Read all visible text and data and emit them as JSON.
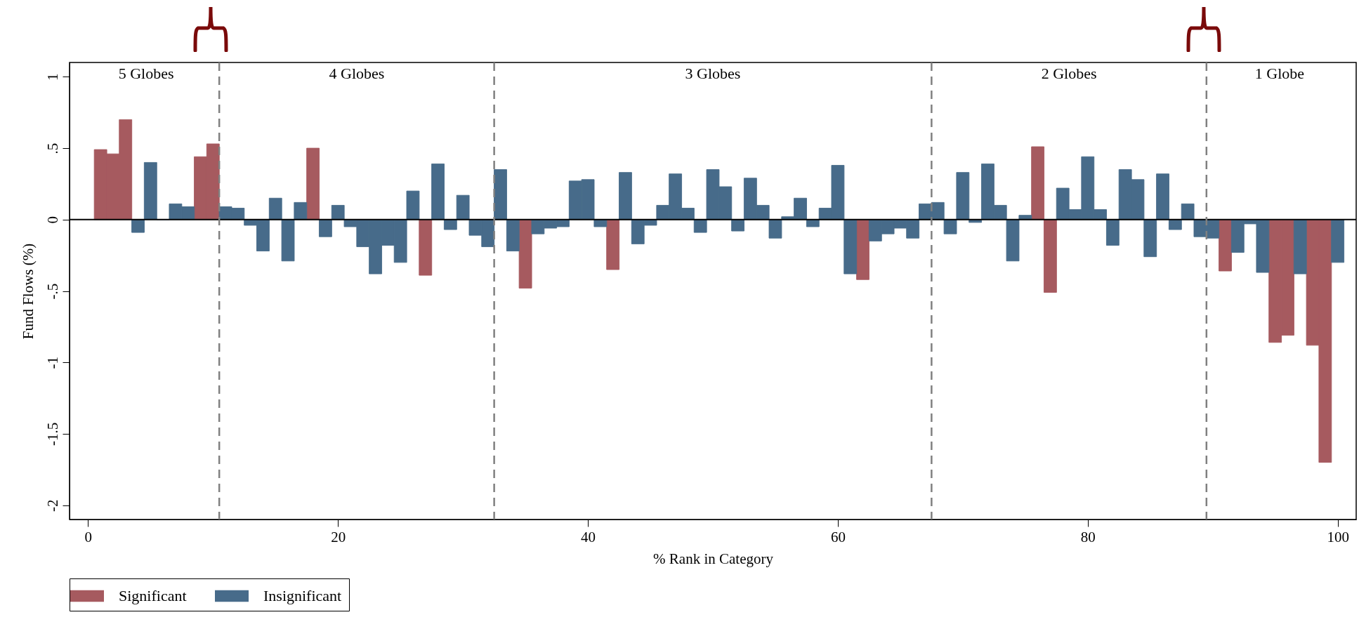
{
  "chart_data": {
    "type": "bar",
    "xlabel": "% Rank in Category",
    "ylabel": "Fund Flows (%)",
    "x": [
      1,
      2,
      3,
      4,
      5,
      6,
      7,
      8,
      9,
      10,
      11,
      12,
      13,
      14,
      15,
      16,
      17,
      18,
      19,
      20,
      21,
      22,
      23,
      24,
      25,
      26,
      27,
      28,
      29,
      30,
      31,
      32,
      33,
      34,
      35,
      36,
      37,
      38,
      39,
      40,
      41,
      42,
      43,
      44,
      45,
      46,
      47,
      48,
      49,
      50,
      51,
      52,
      53,
      54,
      55,
      56,
      57,
      58,
      59,
      60,
      61,
      62,
      63,
      64,
      65,
      66,
      67,
      68,
      69,
      70,
      71,
      72,
      73,
      74,
      75,
      76,
      77,
      78,
      79,
      80,
      81,
      82,
      83,
      84,
      85,
      86,
      87,
      88,
      89,
      90,
      91,
      92,
      93,
      94,
      95,
      96,
      97,
      98,
      99,
      100
    ],
    "series": [
      {
        "name": "Significant",
        "color": "#a65a5f",
        "values": [
          0.49,
          0.46,
          0.7,
          null,
          null,
          null,
          null,
          null,
          0.44,
          0.53,
          null,
          null,
          null,
          null,
          null,
          null,
          null,
          0.5,
          null,
          null,
          null,
          null,
          null,
          null,
          null,
          null,
          -0.39,
          null,
          null,
          null,
          null,
          null,
          null,
          null,
          -0.48,
          null,
          null,
          null,
          null,
          null,
          null,
          -0.35,
          null,
          null,
          null,
          null,
          null,
          null,
          null,
          null,
          null,
          null,
          null,
          null,
          null,
          null,
          null,
          null,
          null,
          null,
          null,
          -0.42,
          null,
          null,
          null,
          null,
          null,
          null,
          null,
          null,
          null,
          null,
          null,
          null,
          null,
          0.51,
          -0.51,
          null,
          null,
          null,
          null,
          null,
          null,
          null,
          null,
          null,
          null,
          null,
          null,
          null,
          -0.36,
          null,
          null,
          null,
          -0.86,
          -0.81,
          null,
          -0.88,
          -1.7,
          null
        ]
      },
      {
        "name": "Insignificant",
        "color": "#476b8a",
        "values": [
          null,
          null,
          null,
          -0.09,
          0.4,
          0.0,
          0.11,
          0.09,
          null,
          null,
          0.09,
          0.08,
          -0.04,
          -0.22,
          0.15,
          -0.29,
          0.12,
          null,
          -0.12,
          0.1,
          -0.05,
          -0.19,
          -0.38,
          -0.18,
          -0.3,
          0.2,
          null,
          0.39,
          -0.07,
          0.17,
          -0.11,
          -0.19,
          0.35,
          -0.22,
          null,
          -0.1,
          -0.06,
          -0.05,
          0.27,
          0.28,
          -0.05,
          null,
          0.33,
          -0.17,
          -0.04,
          0.1,
          0.32,
          0.08,
          -0.09,
          0.35,
          0.23,
          -0.08,
          0.29,
          0.1,
          -0.13,
          0.02,
          0.15,
          -0.05,
          0.08,
          0.38,
          -0.38,
          null,
          -0.15,
          -0.1,
          -0.06,
          -0.13,
          0.11,
          0.12,
          -0.1,
          0.33,
          -0.02,
          0.39,
          0.1,
          -0.29,
          0.03,
          null,
          null,
          0.22,
          0.07,
          0.44,
          0.07,
          -0.18,
          0.35,
          0.28,
          -0.26,
          0.32,
          -0.07,
          0.11,
          -0.12,
          -0.13,
          null,
          -0.23,
          -0.03,
          -0.37,
          null,
          null,
          -0.38,
          null,
          null,
          -0.3
        ]
      }
    ],
    "xlim": [
      -1.2,
      101.2
    ],
    "ylim": [
      -2.1,
      1.1
    ],
    "xticks": [
      0,
      20,
      40,
      60,
      80,
      100
    ],
    "yticks": [
      1,
      {
        "value": 0.5,
        "label": ".5"
      },
      0,
      {
        "value": -0.5,
        "label": "-.5"
      },
      -1,
      {
        "value": -1.5,
        "label": "-1.5"
      },
      -2
    ],
    "ref_lines": [
      {
        "axis": "y",
        "value": 0,
        "color": "#000000",
        "line_style": "solid"
      },
      {
        "axis": "x",
        "value": 10.5,
        "color": "#808080",
        "line_style": "dashed"
      },
      {
        "axis": "x",
        "value": 32.5,
        "color": "#808080",
        "line_style": "dashed"
      },
      {
        "axis": "x",
        "value": 67.5,
        "color": "#808080",
        "line_style": "dashed"
      },
      {
        "axis": "x",
        "value": 89.5,
        "color": "#808080",
        "line_style": "dashed"
      }
    ],
    "annotations": [
      "5 Globes",
      "4 Globes",
      "3 Globes",
      "2 Globes",
      "1 Globe"
    ],
    "legend": "bottom"
  }
}
